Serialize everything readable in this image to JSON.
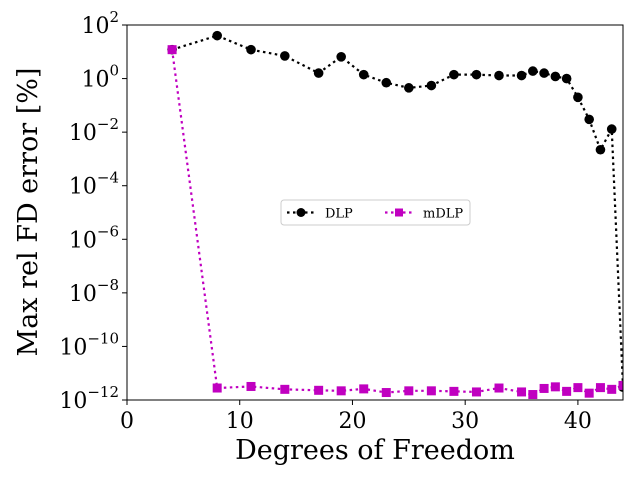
{
  "chart_data": {
    "type": "line",
    "title": "",
    "xlabel": "Degrees of Freedom",
    "ylabel": "Max rel FD error [%]",
    "xlim": [
      0,
      44
    ],
    "ylim_log10": [
      -12,
      2
    ],
    "yscale": "log",
    "grid": false,
    "legend_placement": "center",
    "x_ticks": [
      {
        "value": 0,
        "label": "0"
      },
      {
        "value": 10,
        "label": "10"
      },
      {
        "value": 20,
        "label": "20"
      },
      {
        "value": 30,
        "label": "30"
      },
      {
        "value": 40,
        "label": "40"
      }
    ],
    "y_ticks": [
      {
        "exp": 2,
        "base": "10",
        "sup": "2"
      },
      {
        "exp": 0,
        "base": "10",
        "sup": "0"
      },
      {
        "exp": -2,
        "base": "10",
        "sup": "−2"
      },
      {
        "exp": -4,
        "base": "10",
        "sup": "−4"
      },
      {
        "exp": -6,
        "base": "10",
        "sup": "−6"
      },
      {
        "exp": -8,
        "base": "10",
        "sup": "−8"
      },
      {
        "exp": -10,
        "base": "10",
        "sup": "−10"
      },
      {
        "exp": -12,
        "base": "10",
        "sup": "−12"
      }
    ],
    "series": [
      {
        "name": "DLP",
        "color": "#000000",
        "marker": "circle",
        "x": [
          4,
          8,
          11,
          14,
          17,
          19,
          21,
          23,
          25,
          27,
          29,
          31,
          33,
          35,
          36,
          37,
          38,
          39,
          40,
          41,
          42,
          43,
          44
        ],
        "y": [
          12,
          40,
          12,
          7,
          1.6,
          6.5,
          1.4,
          0.7,
          0.45,
          0.55,
          1.4,
          1.4,
          1.3,
          1.3,
          1.9,
          1.6,
          1.2,
          1.0,
          0.2,
          0.03,
          0.0022,
          0.013,
          3e-12
        ]
      },
      {
        "name": "mDLP",
        "color": "#c000c0",
        "marker": "square",
        "x": [
          4,
          8,
          11,
          14,
          17,
          19,
          21,
          23,
          25,
          27,
          29,
          31,
          33,
          35,
          36,
          37,
          38,
          39,
          40,
          41,
          42,
          43,
          44
        ],
        "y": [
          12,
          2.8e-12,
          3.2e-12,
          2.5e-12,
          2.3e-12,
          2.2e-12,
          2.6e-12,
          1.9e-12,
          2.2e-12,
          2.2e-12,
          2.1e-12,
          2e-12,
          2.8e-12,
          2e-12,
          1.6e-12,
          2.7e-12,
          3.1e-12,
          2.1e-12,
          2.9e-12,
          1.8e-12,
          2.9e-12,
          2.5e-12,
          3.5e-12
        ]
      }
    ]
  }
}
